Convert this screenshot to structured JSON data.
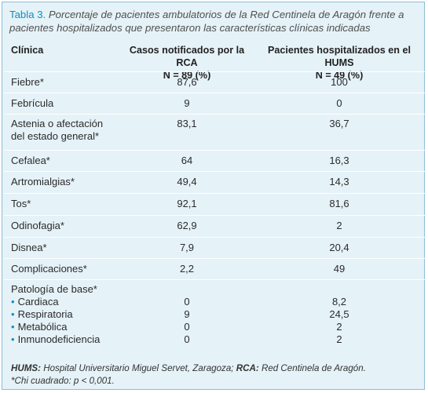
{
  "caption": {
    "table_number": "Tabla 3.",
    "text": " Porcentaje de pacientes ambulatorios de la Red Centinela de Aragón frente a pacientes hospitalizados que presentaron las características clínicas indicadas"
  },
  "header": {
    "col1": "Clínica",
    "col2_line1": "Casos notificados por la RCA",
    "col2_line2": "N = 89 (%)",
    "col3_line1": "Pacientes hospitalizados en el HUMS",
    "col3_line2": "N = 49 (%)"
  },
  "rows": [
    {
      "label": "Fiebre*",
      "rca": "87,6",
      "hums": "100"
    },
    {
      "label": "Febrícula",
      "rca": "9",
      "hums": "0"
    },
    {
      "label_line1": "Astenia o afectación",
      "label_line2": "del estado general*",
      "rca": "83,1",
      "hums": "36,7"
    },
    {
      "label": "Cefalea*",
      "rca": "64",
      "hums": "16,3"
    },
    {
      "label": "Artromialgias*",
      "rca": "49,4",
      "hums": "14,3"
    },
    {
      "label": "Tos*",
      "rca": "92,1",
      "hums": "81,6"
    },
    {
      "label": "Odinofagia*",
      "rca": "62,9",
      "hums": "2"
    },
    {
      "label": "Disnea*",
      "rca": "7,9",
      "hums": "20,4"
    },
    {
      "label": "Complicaciones*",
      "rca": "2,2",
      "hums": "49"
    }
  ],
  "base": {
    "label": "Patología de base*",
    "items": [
      {
        "label": "Cardiaca",
        "rca": "0",
        "hums": "8,2"
      },
      {
        "label": "Respiratoria",
        "rca": "9",
        "hums": "24,5"
      },
      {
        "label": "Metabólica",
        "rca": "0",
        "hums": "2"
      },
      {
        "label": "Inmunodeficiencia",
        "rca": "0",
        "hums": "2"
      }
    ]
  },
  "footer": {
    "abbr1": "HUMS:",
    "text1": " Hospital Universitario Miguel Servet, Zaragoza; ",
    "abbr2": "RCA:",
    "text2": " Red Centinela de Aragón.",
    "note": "*Chi cuadrado: p < 0,001."
  },
  "colors": {
    "background": "#e5f2f8",
    "border": "#8fbcd6",
    "accent": "#0f8fbf"
  }
}
